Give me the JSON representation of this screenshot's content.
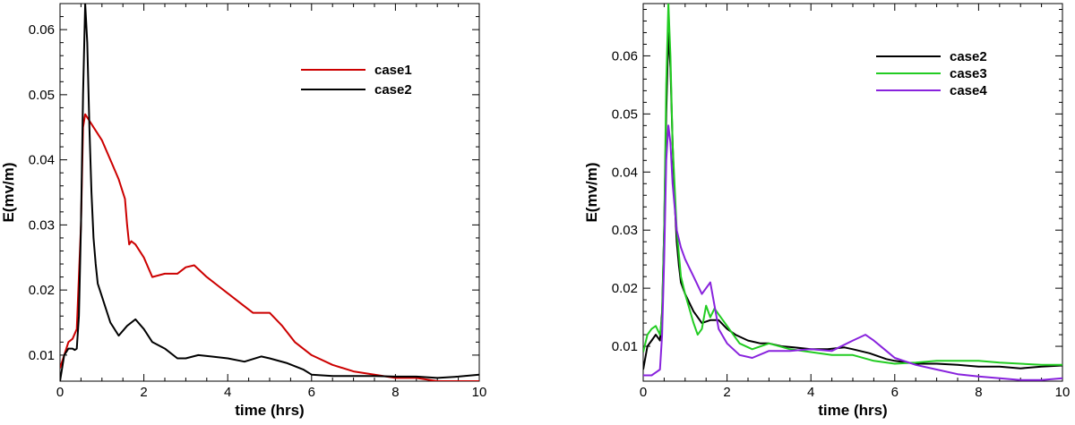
{
  "chart_data": [
    {
      "type": "line",
      "xlabel": "time (hrs)",
      "ylabel": "E(mv/m)",
      "xlim": [
        0,
        10
      ],
      "ylim": [
        0.006,
        0.064
      ],
      "xticks": [
        0,
        2,
        4,
        6,
        8,
        10
      ],
      "yticks": [
        0.01,
        0.02,
        0.03,
        0.04,
        0.05,
        0.06
      ],
      "xtick_labels": [
        "0",
        "2",
        "4",
        "6",
        "8",
        "10"
      ],
      "ytick_labels": [
        "0.01",
        "0.02",
        "0.03",
        "0.04",
        "0.05",
        "0.06"
      ],
      "grid": false,
      "legend": "top-right",
      "series": [
        {
          "name": "case1",
          "color": "#cc0000",
          "x": [
            0,
            0.1,
            0.2,
            0.3,
            0.4,
            0.5,
            0.55,
            0.6,
            0.7,
            0.8,
            1.0,
            1.2,
            1.4,
            1.55,
            1.6,
            1.65,
            1.7,
            1.8,
            2.0,
            2.2,
            2.5,
            2.8,
            3.0,
            3.2,
            3.5,
            3.8,
            4.0,
            4.3,
            4.6,
            5.0,
            5.3,
            5.6,
            6.0,
            6.5,
            7.0,
            7.5,
            8.0,
            8.5,
            9.0,
            9.5,
            10.0
          ],
          "y": [
            0.008,
            0.01,
            0.012,
            0.0125,
            0.014,
            0.03,
            0.045,
            0.047,
            0.046,
            0.045,
            0.043,
            0.04,
            0.037,
            0.034,
            0.03,
            0.027,
            0.0275,
            0.027,
            0.025,
            0.022,
            0.0225,
            0.0225,
            0.0235,
            0.0238,
            0.022,
            0.0205,
            0.0195,
            0.018,
            0.0165,
            0.0165,
            0.0145,
            0.012,
            0.01,
            0.0085,
            0.0075,
            0.007,
            0.0065,
            0.0065,
            0.006,
            0.006,
            0.006
          ]
        },
        {
          "name": "case2",
          "color": "#000000",
          "x": [
            0,
            0.1,
            0.2,
            0.3,
            0.35,
            0.4,
            0.45,
            0.5,
            0.55,
            0.6,
            0.65,
            0.7,
            0.75,
            0.8,
            0.85,
            0.9,
            1.0,
            1.2,
            1.4,
            1.6,
            1.8,
            2.0,
            2.2,
            2.5,
            2.8,
            3.0,
            3.3,
            3.6,
            4.0,
            4.4,
            4.8,
            5.0,
            5.4,
            5.8,
            6.0,
            6.5,
            7.0,
            7.5,
            8.0,
            8.5,
            9.0,
            9.5,
            10.0
          ],
          "y": [
            0.006,
            0.01,
            0.011,
            0.011,
            0.0108,
            0.011,
            0.016,
            0.03,
            0.05,
            0.064,
            0.058,
            0.045,
            0.035,
            0.028,
            0.024,
            0.021,
            0.019,
            0.015,
            0.013,
            0.0145,
            0.0155,
            0.014,
            0.012,
            0.011,
            0.0095,
            0.0095,
            0.01,
            0.0098,
            0.0095,
            0.009,
            0.0098,
            0.0095,
            0.0088,
            0.0078,
            0.007,
            0.0068,
            0.0068,
            0.0068,
            0.0067,
            0.0067,
            0.0065,
            0.0067,
            0.007
          ]
        }
      ]
    },
    {
      "type": "line",
      "xlabel": "time (hrs)",
      "ylabel": "E(mv/m)",
      "xlim": [
        0,
        10
      ],
      "ylim": [
        0.004,
        0.069
      ],
      "xticks": [
        0,
        2,
        4,
        6,
        8,
        10
      ],
      "yticks": [
        0.01,
        0.02,
        0.03,
        0.04,
        0.05,
        0.06
      ],
      "xtick_labels": [
        "0",
        "2",
        "4",
        "6",
        "8",
        "10"
      ],
      "ytick_labels": [
        "0.01",
        "0.02",
        "0.03",
        "0.04",
        "0.05",
        "0.06"
      ],
      "grid": false,
      "legend": "top-right",
      "series": [
        {
          "name": "case2",
          "color": "#000000",
          "x": [
            0,
            0.1,
            0.2,
            0.3,
            0.35,
            0.4,
            0.45,
            0.5,
            0.55,
            0.6,
            0.65,
            0.7,
            0.75,
            0.8,
            0.85,
            0.9,
            1.0,
            1.2,
            1.4,
            1.6,
            1.8,
            2.0,
            2.2,
            2.5,
            2.8,
            3.0,
            3.3,
            3.6,
            4.0,
            4.4,
            4.8,
            5.0,
            5.4,
            5.8,
            6.0,
            6.5,
            7.0,
            7.5,
            8.0,
            8.5,
            9.0,
            9.5,
            10.0
          ],
          "y": [
            0.006,
            0.01,
            0.011,
            0.012,
            0.0115,
            0.011,
            0.016,
            0.03,
            0.05,
            0.064,
            0.058,
            0.045,
            0.035,
            0.028,
            0.024,
            0.021,
            0.019,
            0.016,
            0.014,
            0.0145,
            0.0145,
            0.013,
            0.012,
            0.011,
            0.0105,
            0.0105,
            0.01,
            0.0098,
            0.0095,
            0.0095,
            0.0098,
            0.0095,
            0.0088,
            0.0078,
            0.0075,
            0.007,
            0.007,
            0.0068,
            0.0065,
            0.0065,
            0.0062,
            0.0065,
            0.0067
          ]
        },
        {
          "name": "case3",
          "color": "#22cc22",
          "x": [
            0,
            0.1,
            0.2,
            0.3,
            0.4,
            0.45,
            0.5,
            0.55,
            0.6,
            0.65,
            0.7,
            0.8,
            0.9,
            1.0,
            1.2,
            1.3,
            1.4,
            1.5,
            1.6,
            1.7,
            1.8,
            2.0,
            2.3,
            2.6,
            3.0,
            3.5,
            4.0,
            4.5,
            5.0,
            5.5,
            6.0,
            6.5,
            7.0,
            7.5,
            8.0,
            8.5,
            9.0,
            9.5,
            10.0
          ],
          "y": [
            0.009,
            0.012,
            0.013,
            0.0135,
            0.012,
            0.015,
            0.03,
            0.055,
            0.069,
            0.06,
            0.045,
            0.03,
            0.022,
            0.019,
            0.014,
            0.012,
            0.013,
            0.017,
            0.015,
            0.0165,
            0.0155,
            0.0135,
            0.0105,
            0.0095,
            0.0105,
            0.0095,
            0.009,
            0.0085,
            0.0085,
            0.0075,
            0.007,
            0.0072,
            0.0075,
            0.0075,
            0.0075,
            0.0072,
            0.007,
            0.0068,
            0.0068
          ]
        },
        {
          "name": "case4",
          "color": "#8822dd",
          "x": [
            0,
            0.1,
            0.2,
            0.3,
            0.4,
            0.45,
            0.5,
            0.55,
            0.6,
            0.65,
            0.7,
            0.8,
            0.9,
            1.0,
            1.2,
            1.4,
            1.5,
            1.6,
            1.7,
            1.8,
            2.0,
            2.3,
            2.6,
            3.0,
            3.5,
            4.0,
            4.5,
            5.0,
            5.3,
            5.5,
            5.8,
            6.0,
            6.5,
            7.0,
            7.5,
            8.0,
            8.5,
            9.0,
            9.5,
            10.0
          ],
          "y": [
            0.005,
            0.005,
            0.005,
            0.0055,
            0.006,
            0.012,
            0.025,
            0.042,
            0.048,
            0.045,
            0.038,
            0.03,
            0.027,
            0.025,
            0.022,
            0.019,
            0.02,
            0.021,
            0.017,
            0.013,
            0.0105,
            0.0085,
            0.008,
            0.0092,
            0.0092,
            0.0095,
            0.0092,
            0.011,
            0.012,
            0.011,
            0.0092,
            0.008,
            0.0068,
            0.006,
            0.0052,
            0.0048,
            0.0045,
            0.0042,
            0.0042,
            0.0045
          ]
        }
      ]
    }
  ]
}
